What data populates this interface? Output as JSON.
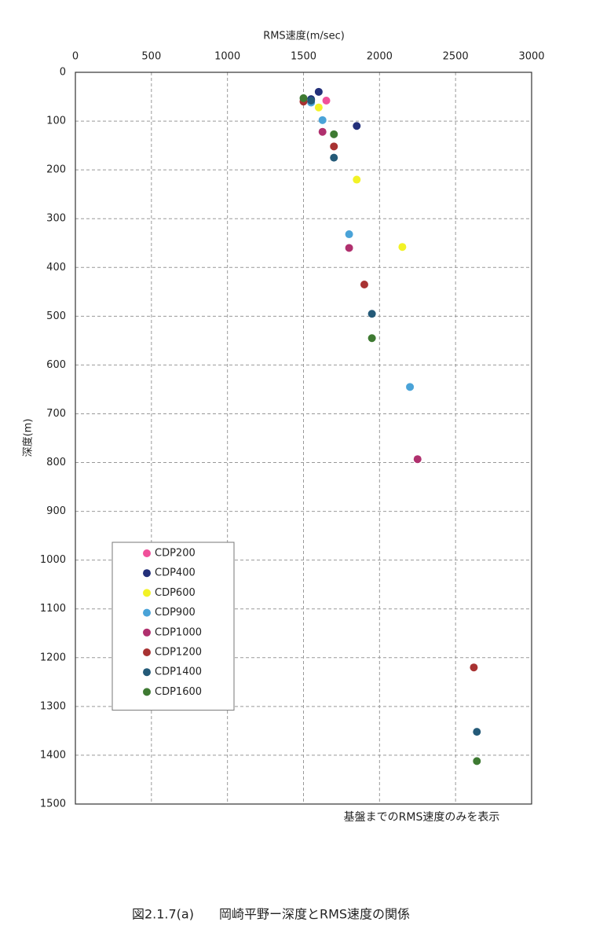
{
  "chart_data": {
    "type": "scatter",
    "x_label": "RMS速度(m/sec)",
    "y_label": "深度(m)",
    "note": "基盤までのRMS速度のみを表示",
    "caption": "図2.1.7(a)　　岡崎平野ー深度とRMS速度の関係",
    "xlim": [
      0,
      3000
    ],
    "xticks": [
      0,
      500,
      1000,
      1500,
      2000,
      2500,
      3000
    ],
    "ylim": [
      0,
      1500
    ],
    "yticks": [
      0,
      100,
      200,
      300,
      400,
      500,
      600,
      700,
      800,
      900,
      1000,
      1100,
      1200,
      1300,
      1400,
      1500
    ],
    "y_inverted": true,
    "x_axis_top": true,
    "grid": true,
    "legend": "lower-left",
    "series": [
      {
        "name": "CDP200",
        "color": "#f0509a",
        "x": [
          1650
        ],
        "y": [
          58
        ]
      },
      {
        "name": "CDP400",
        "color": "#23307a",
        "x": [
          1600,
          1550,
          1850
        ],
        "y": [
          40,
          55,
          110
        ]
      },
      {
        "name": "CDP600",
        "color": "#f2f226",
        "x": [
          1600,
          1850,
          2150
        ],
        "y": [
          72,
          220,
          358
        ]
      },
      {
        "name": "CDP900",
        "color": "#4aa3d8",
        "x": [
          1550,
          1625,
          1800,
          2200
        ],
        "y": [
          62,
          98,
          332,
          645
        ]
      },
      {
        "name": "CDP1000",
        "color": "#b0306e",
        "x": [
          1625,
          1800,
          2250
        ],
        "y": [
          122,
          360,
          793
        ]
      },
      {
        "name": "CDP1200",
        "color": "#a83232",
        "x": [
          1500,
          1700,
          1900,
          2620
        ],
        "y": [
          60,
          152,
          435,
          1220
        ]
      },
      {
        "name": "CDP1400",
        "color": "#245a78",
        "x": [
          1550,
          1700,
          1950,
          2640
        ],
        "y": [
          58,
          175,
          495,
          1352
        ]
      },
      {
        "name": "CDP1600",
        "color": "#3e7a32",
        "x": [
          1500,
          1700,
          1950,
          2640
        ],
        "y": [
          53,
          127,
          545,
          1412
        ]
      }
    ]
  }
}
